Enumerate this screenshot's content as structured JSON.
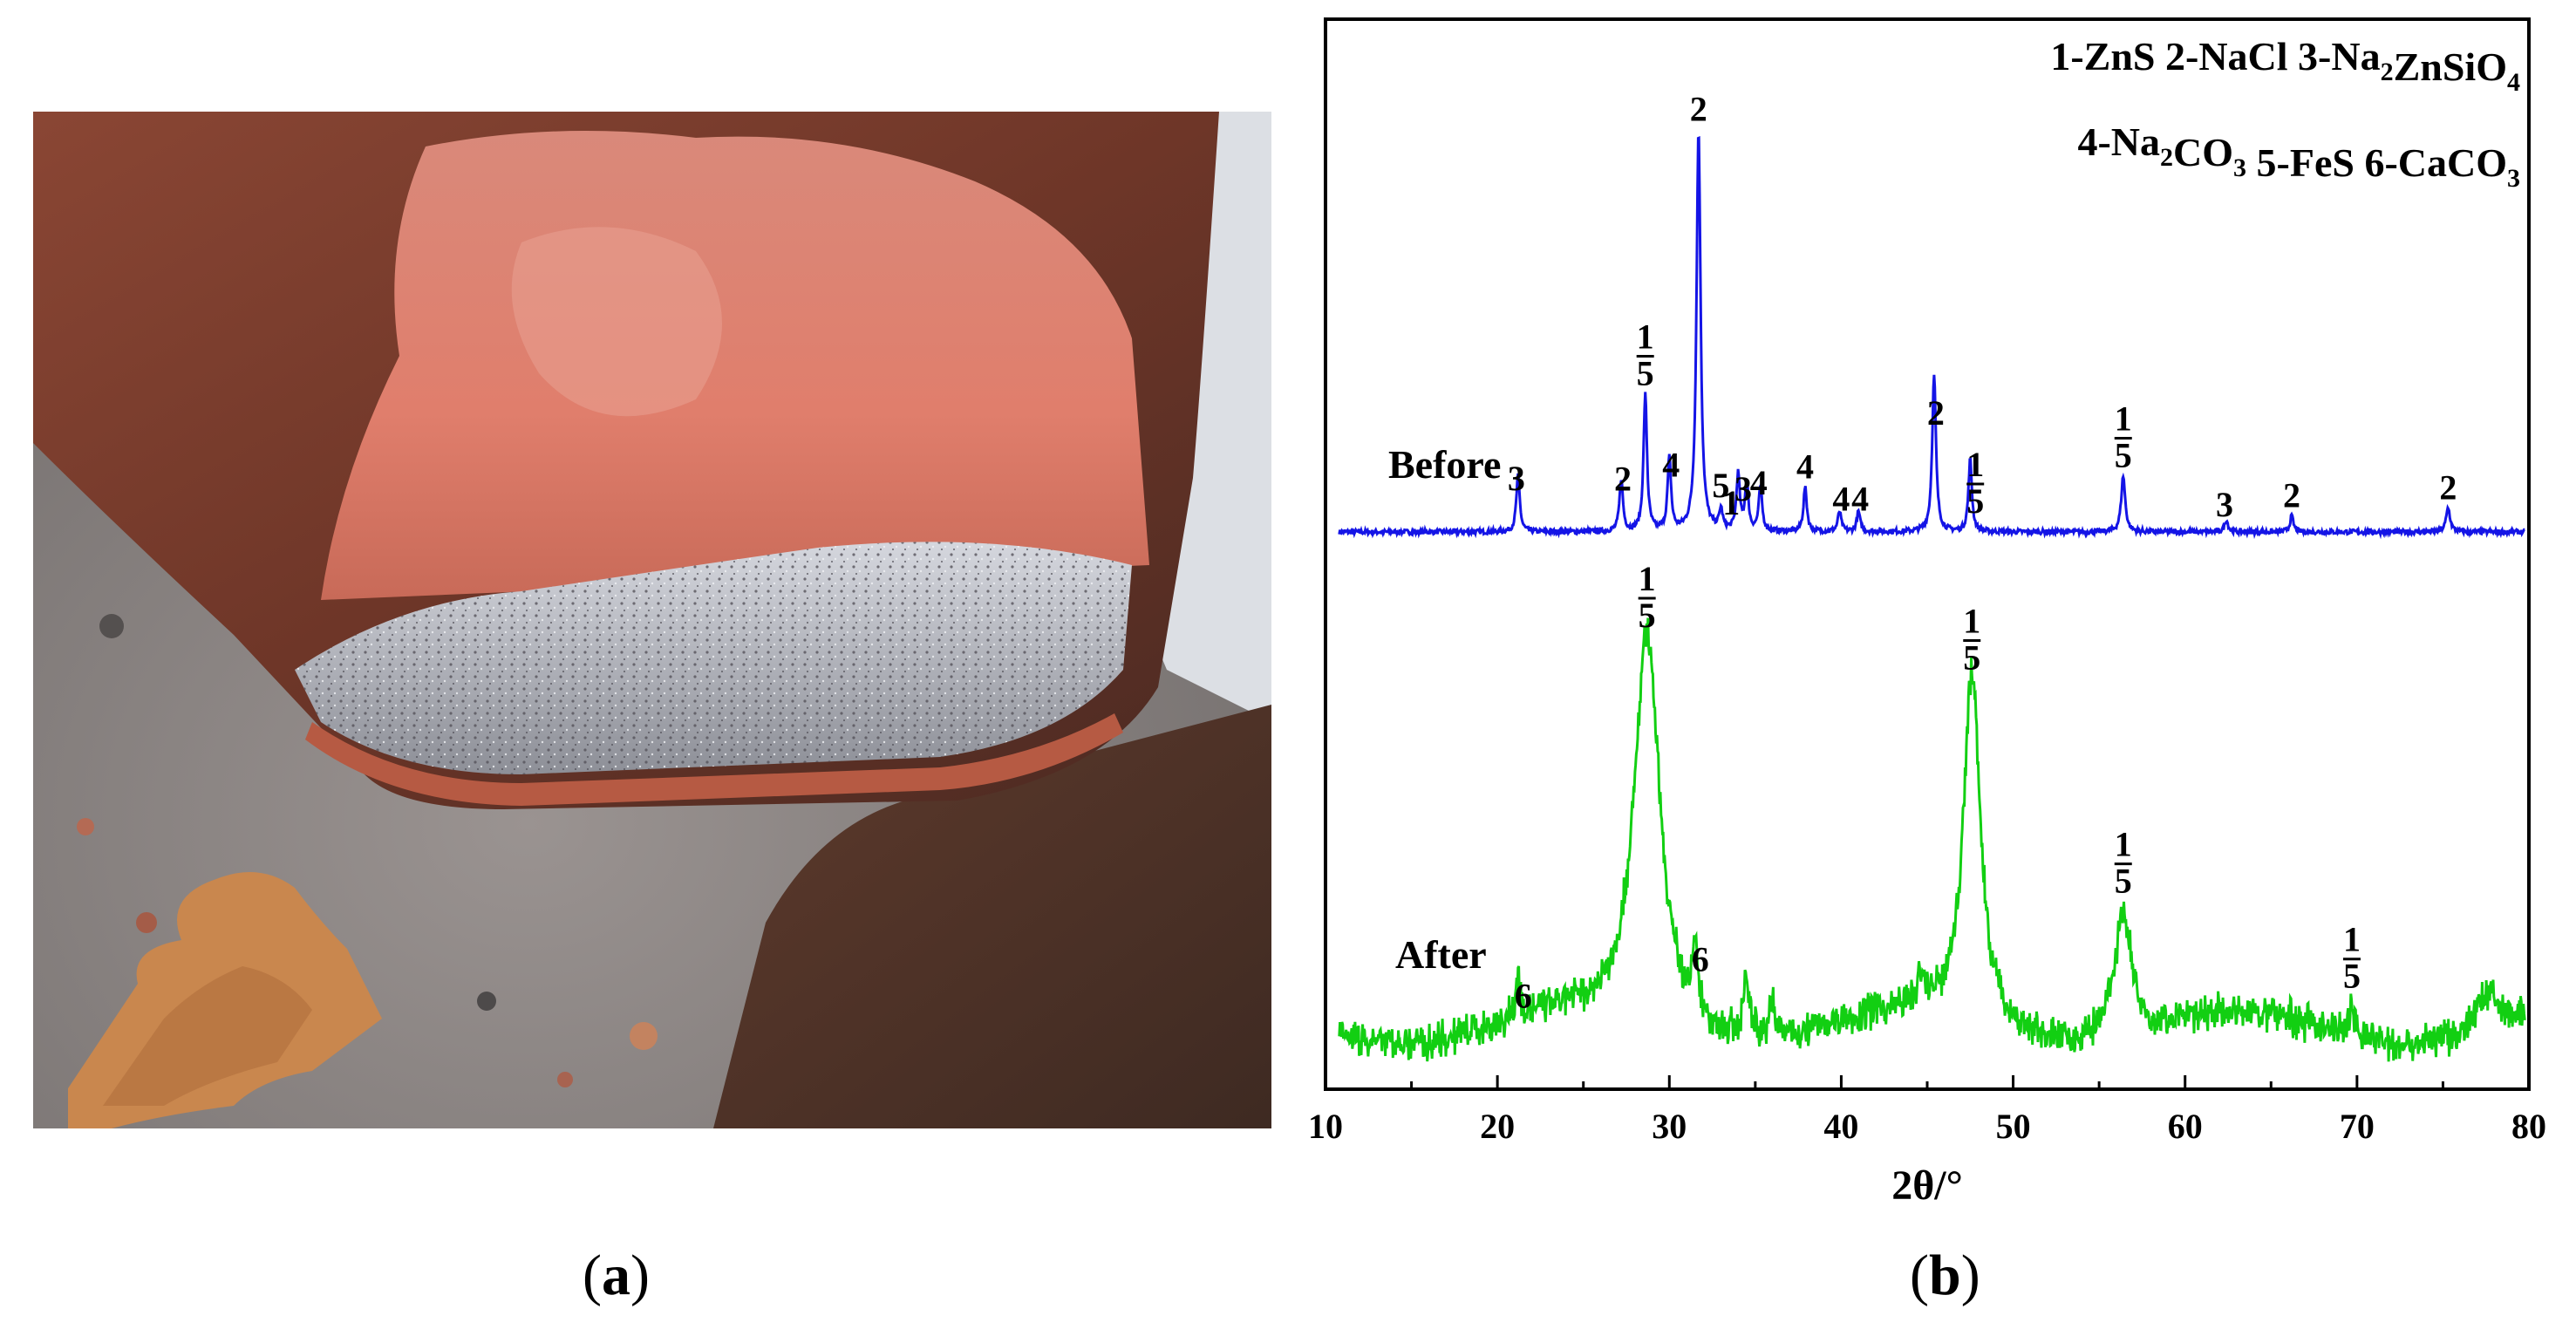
{
  "panel_a": {
    "label_open": "(",
    "label_letter": "a",
    "label_close": ")",
    "image_description_icon": "photo-icon"
  },
  "panel_b": {
    "label_open": "(",
    "label_letter": "b",
    "label_close": ")"
  },
  "colors": {
    "before": "#1414e6",
    "after": "#12cf12",
    "axis": "#000000"
  },
  "chart_data": {
    "type": "line",
    "xlabel": "2θ/°",
    "ylabel": "",
    "xlim": [
      10,
      80
    ],
    "xticks": [
      10,
      20,
      30,
      40,
      50,
      60,
      70,
      80
    ],
    "legend": [
      {
        "line": 0,
        "parts": [
          {
            "t": "1-ZnS  2-NaCl  3-Na"
          },
          {
            "t": "2",
            "sub": true
          },
          {
            "t": "ZnSiO"
          },
          {
            "t": "4",
            "sub": true
          }
        ]
      },
      {
        "line": 1,
        "parts": [
          {
            "t": "4-Na"
          },
          {
            "t": "2",
            "sub": true
          },
          {
            "t": "CO"
          },
          {
            "t": "3",
            "sub": true
          },
          {
            "t": "  5-FeS  6-CaCO"
          },
          {
            "t": "3",
            "sub": true
          }
        ]
      }
    ],
    "series": [
      {
        "name": "Before",
        "baseline": 0,
        "noise": 0.6,
        "peaks": [
          {
            "x": 21.2,
            "h": 14,
            "w": 0.12
          },
          {
            "x": 27.2,
            "h": 13,
            "w": 0.12
          },
          {
            "x": 28.6,
            "h": 34,
            "w": 0.12
          },
          {
            "x": 30.0,
            "h": 18,
            "w": 0.12
          },
          {
            "x": 31.7,
            "h": 100,
            "w": 0.14
          },
          {
            "x": 33.0,
            "h": 5,
            "w": 0.12
          },
          {
            "x": 34.0,
            "h": 14,
            "w": 0.12
          },
          {
            "x": 34.5,
            "h": 12,
            "w": 0.12
          },
          {
            "x": 35.3,
            "h": 11,
            "w": 0.12
          },
          {
            "x": 37.9,
            "h": 11,
            "w": 0.12
          },
          {
            "x": 39.9,
            "h": 5,
            "w": 0.12
          },
          {
            "x": 41.0,
            "h": 5,
            "w": 0.12
          },
          {
            "x": 45.4,
            "h": 39,
            "w": 0.13
          },
          {
            "x": 47.5,
            "h": 18,
            "w": 0.12
          },
          {
            "x": 56.4,
            "h": 14,
            "w": 0.14
          },
          {
            "x": 62.4,
            "h": 3,
            "w": 0.12
          },
          {
            "x": 66.2,
            "h": 4,
            "w": 0.12
          },
          {
            "x": 75.3,
            "h": 6,
            "w": 0.14
          }
        ]
      },
      {
        "name": "After",
        "baseline": 0,
        "noise": 2.5,
        "peaks": [
          {
            "x": 21.2,
            "h": 12,
            "w": 0.12
          },
          {
            "x": 28.7,
            "h": 100,
            "w": 0.9
          },
          {
            "x": 31.5,
            "h": 17,
            "w": 0.18
          },
          {
            "x": 34.5,
            "h": 13,
            "w": 0.25
          },
          {
            "x": 36.0,
            "h": 8,
            "w": 0.2
          },
          {
            "x": 44.6,
            "h": 6,
            "w": 0.3
          },
          {
            "x": 47.6,
            "h": 89,
            "w": 0.6
          },
          {
            "x": 56.4,
            "h": 32,
            "w": 0.6
          },
          {
            "x": 69.7,
            "h": 8,
            "w": 0.2
          },
          {
            "x": 77.6,
            "h": 10,
            "w": 0.8
          }
        ]
      }
    ],
    "annotations": [
      {
        "series": "Before",
        "x": 21.1,
        "label": "3"
      },
      {
        "series": "Before",
        "x": 27.3,
        "label": "2"
      },
      {
        "series": "Before",
        "x": 28.6,
        "label": "1/5"
      },
      {
        "series": "Before",
        "x": 30.1,
        "label": "4"
      },
      {
        "series": "Before",
        "x": 31.7,
        "label": "2"
      },
      {
        "series": "Before",
        "x": 33.0,
        "label": "5"
      },
      {
        "series": "Before",
        "x": 33.6,
        "label": "1"
      },
      {
        "series": "Before",
        "x": 34.3,
        "label": "3"
      },
      {
        "series": "Before",
        "x": 35.2,
        "label": "4"
      },
      {
        "series": "Before",
        "x": 37.9,
        "label": "4"
      },
      {
        "series": "Before",
        "x": 40.0,
        "label": "4"
      },
      {
        "series": "Before",
        "x": 41.1,
        "label": "4"
      },
      {
        "series": "Before",
        "x": 45.5,
        "label": "2"
      },
      {
        "series": "Before",
        "x": 47.8,
        "label": "1/5"
      },
      {
        "series": "Before",
        "x": 56.4,
        "label": "1/5"
      },
      {
        "series": "Before",
        "x": 62.3,
        "label": "3"
      },
      {
        "series": "Before",
        "x": 66.2,
        "label": "2"
      },
      {
        "series": "Before",
        "x": 75.3,
        "label": "2"
      },
      {
        "series": "After",
        "x": 21.5,
        "label": "6"
      },
      {
        "series": "After",
        "x": 28.7,
        "label": "1/5"
      },
      {
        "series": "After",
        "x": 31.8,
        "label": "6"
      },
      {
        "series": "After",
        "x": 47.6,
        "label": "1/5"
      },
      {
        "series": "After",
        "x": 56.4,
        "label": "1/5"
      },
      {
        "series": "After",
        "x": 69.7,
        "label": "1/5"
      }
    ]
  }
}
